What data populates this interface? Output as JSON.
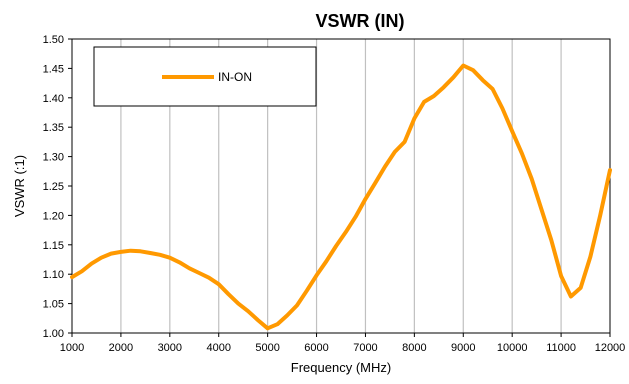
{
  "chart_data": {
    "type": "line",
    "title": "VSWR (IN)",
    "xlabel": "Frequency (MHz)",
    "ylabel": "VSWR (:1)",
    "xlim": [
      1000,
      12000
    ],
    "ylim": [
      1.0,
      1.5
    ],
    "xticks": [
      1000,
      2000,
      3000,
      4000,
      5000,
      6000,
      7000,
      8000,
      9000,
      10000,
      11000,
      12000
    ],
    "yticks": [
      1.0,
      1.05,
      1.1,
      1.15,
      1.2,
      1.25,
      1.3,
      1.35,
      1.4,
      1.45,
      1.5
    ],
    "ytick_format": 2,
    "grid": "vertical",
    "legend_position": "top-left",
    "colors": {
      "series": "#FF9900",
      "plot_border": "#000000",
      "grid": "#C0C0C0"
    },
    "series": [
      {
        "name": "IN-ON",
        "x": [
          1000,
          1200,
          1400,
          1600,
          1800,
          2000,
          2200,
          2400,
          2600,
          2800,
          3000,
          3200,
          3400,
          3600,
          3800,
          4000,
          4200,
          4400,
          4600,
          4800,
          5000,
          5200,
          5400,
          5600,
          5800,
          6000,
          6200,
          6400,
          6600,
          6800,
          7000,
          7200,
          7400,
          7600,
          7800,
          8000,
          8200,
          8400,
          8600,
          8800,
          9000,
          9200,
          9400,
          9600,
          9800,
          10000,
          10200,
          10400,
          10600,
          10800,
          11000,
          11200,
          11400,
          11600,
          11800,
          12000
        ],
        "y": [
          1.095,
          1.105,
          1.118,
          1.128,
          1.135,
          1.138,
          1.14,
          1.139,
          1.136,
          1.133,
          1.128,
          1.12,
          1.11,
          1.102,
          1.094,
          1.083,
          1.066,
          1.05,
          1.037,
          1.022,
          1.008,
          1.015,
          1.03,
          1.047,
          1.072,
          1.098,
          1.122,
          1.148,
          1.172,
          1.198,
          1.228,
          1.255,
          1.283,
          1.308,
          1.325,
          1.365,
          1.393,
          1.403,
          1.418,
          1.435,
          1.455,
          1.447,
          1.43,
          1.415,
          1.382,
          1.343,
          1.305,
          1.262,
          1.21,
          1.158,
          1.097,
          1.062,
          1.077,
          1.13,
          1.2,
          1.277
        ]
      }
    ]
  }
}
